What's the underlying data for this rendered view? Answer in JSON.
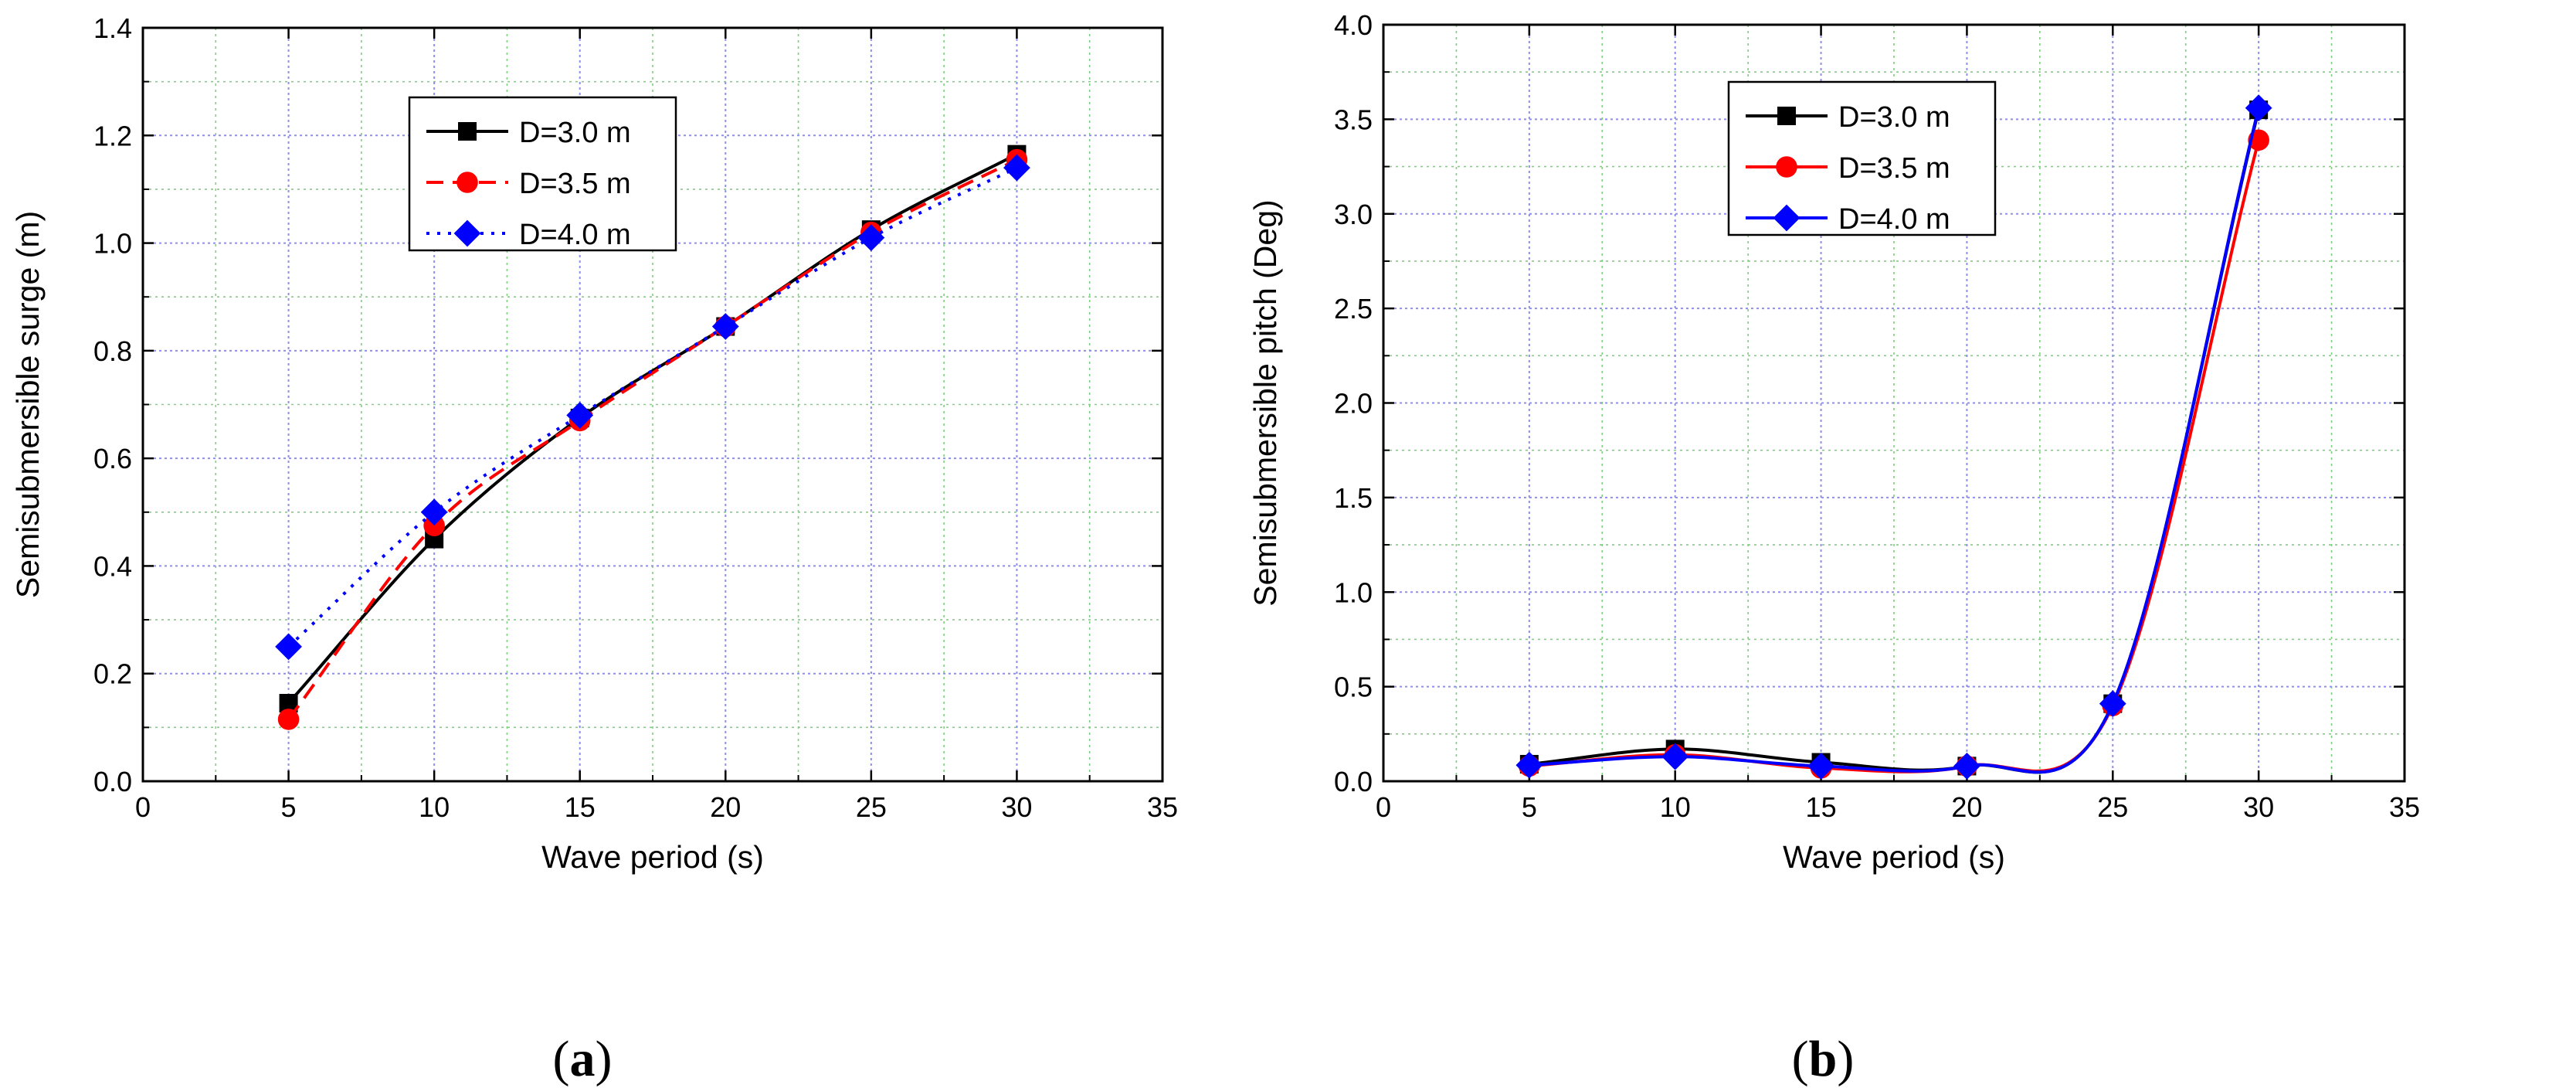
{
  "colors": {
    "grid_vertical": "#8f8fe8",
    "grid_horizontal": "#7cd17c",
    "axis": "#000000"
  },
  "chart_data": [
    {
      "type": "line",
      "caption": {
        "open": "(",
        "letter": "a",
        "close": ")"
      },
      "xlabel": "Wave period (s)",
      "ylabel": "Semisubmersible surge (m)",
      "xlim": [
        0,
        35
      ],
      "ylim": [
        0,
        1.4
      ],
      "xticks": [
        "0",
        "5",
        "10",
        "15",
        "20",
        "25",
        "30",
        "35"
      ],
      "yticks": [
        "0.0",
        "0.2",
        "0.4",
        "0.6",
        "0.8",
        "1.0",
        "1.2",
        "1.4"
      ],
      "grid": true,
      "legend_position": "upper-left",
      "x": [
        5,
        10,
        15,
        20,
        25,
        30
      ],
      "series": [
        {
          "name": "D=3.0 m",
          "color": "#000000",
          "marker": "square",
          "dash": "solid",
          "values": [
            0.145,
            0.45,
            0.675,
            0.845,
            1.025,
            1.165
          ]
        },
        {
          "name": "D=3.5 m",
          "color": "#ff0000",
          "marker": "circle",
          "dash": "dash",
          "values": [
            0.115,
            0.475,
            0.67,
            0.845,
            1.02,
            1.155
          ]
        },
        {
          "name": "D=4.0 m",
          "color": "#0000ff",
          "marker": "diamond",
          "dash": "dot",
          "values": [
            0.25,
            0.5,
            0.68,
            0.845,
            1.01,
            1.14
          ]
        }
      ]
    },
    {
      "type": "line",
      "caption": {
        "open": "(",
        "letter": "b",
        "close": ")"
      },
      "xlabel": "Wave period (s)",
      "ylabel": "Semisubmersible pitch (Deg)",
      "xlim": [
        0,
        35
      ],
      "ylim": [
        0,
        4.0
      ],
      "xticks": [
        "0",
        "5",
        "10",
        "15",
        "20",
        "25",
        "30",
        "35"
      ],
      "yticks": [
        "0.0",
        "0.5",
        "1.0",
        "1.5",
        "2.0",
        "2.5",
        "3.0",
        "3.5",
        "4.0"
      ],
      "grid": true,
      "legend_position": "upper-left",
      "x": [
        5,
        10,
        15,
        20,
        25,
        30
      ],
      "series": [
        {
          "name": "D=3.0 m",
          "color": "#000000",
          "marker": "square",
          "dash": "solid",
          "values": [
            0.09,
            0.17,
            0.1,
            0.08,
            0.41,
            3.55
          ]
        },
        {
          "name": "D=3.5 m",
          "color": "#ff0000",
          "marker": "circle",
          "dash": "solid",
          "values": [
            0.08,
            0.14,
            0.07,
            0.08,
            0.4,
            3.39
          ]
        },
        {
          "name": "D=4.0 m",
          "color": "#0000ff",
          "marker": "diamond",
          "dash": "solid",
          "values": [
            0.085,
            0.13,
            0.08,
            0.08,
            0.41,
            3.56
          ]
        }
      ]
    }
  ]
}
